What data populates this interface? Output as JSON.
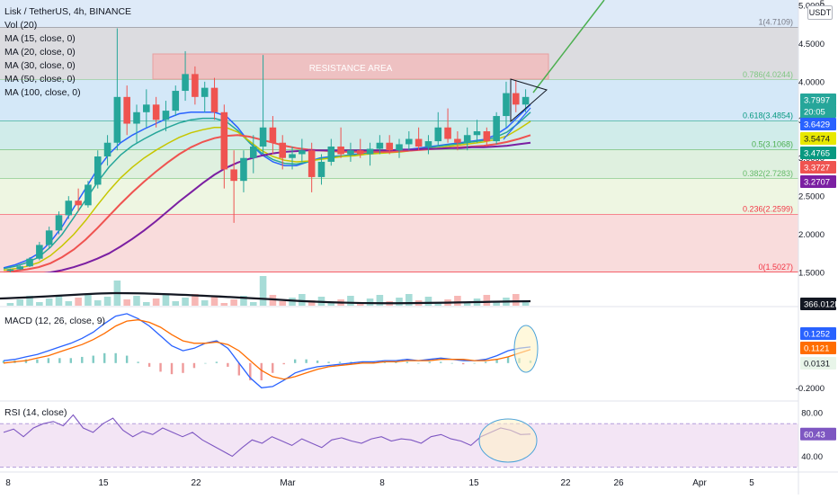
{
  "header": {
    "title": "Lisk / TetherUS, 4h, BINANCE",
    "indicators": [
      "Vol (20)",
      "MA (15, close, 0)",
      "MA (20, close, 0)",
      "MA (30, close, 0)",
      "MA (50, close, 0)",
      "MA (100, close, 0)"
    ]
  },
  "panes": {
    "macd_label": "MACD (12, 26, close, 9)",
    "rsi_label": "RSI (14, close)"
  },
  "currency_badge": "USDT",
  "annotations": {
    "resistance": "RESISTANCE AREA"
  },
  "colors": {
    "up": "#26a69a",
    "down": "#ef5350",
    "ma15": "#2962ff",
    "ma20": "#26a69a",
    "ma30": "#c6c600",
    "ma50": "#ef5350",
    "ma100": "#7b1fa2",
    "trend": "#4caf50",
    "rsi": "#7e57c2",
    "macd_signal": "#ff6d00"
  },
  "chart_data": [
    {
      "type": "candlestick",
      "name": "price",
      "x_ticks": [
        "8",
        "15",
        "22",
        "Mar",
        "8",
        "15",
        "22",
        "26",
        "Apr",
        "5"
      ],
      "y_ticks": [
        5.0,
        4.5,
        4.0,
        3.5,
        3.0,
        2.5,
        2.0,
        1.5
      ],
      "y_tick_labels": [
        "5.0000",
        "4.5000",
        "4.0000",
        "3.5000",
        "3.0000",
        "2.5000",
        "2.0000",
        "1.5000"
      ],
      "ylim": [
        1.35,
        5.0
      ],
      "candles_approx": [
        [
          1.52,
          1.55,
          1.5,
          1.54
        ],
        [
          1.54,
          1.6,
          1.53,
          1.58
        ],
        [
          1.58,
          1.7,
          1.57,
          1.68
        ],
        [
          1.68,
          1.9,
          1.66,
          1.86
        ],
        [
          1.86,
          2.1,
          1.82,
          2.05
        ],
        [
          2.05,
          2.3,
          2.0,
          2.25
        ],
        [
          2.25,
          2.5,
          2.2,
          2.44
        ],
        [
          2.44,
          2.6,
          2.3,
          2.38
        ],
        [
          2.38,
          2.7,
          2.35,
          2.65
        ],
        [
          2.65,
          3.1,
          2.6,
          3.02
        ],
        [
          3.02,
          3.3,
          2.9,
          3.2
        ],
        [
          3.2,
          4.7,
          3.1,
          3.8
        ],
        [
          3.8,
          3.95,
          3.3,
          3.45
        ],
        [
          3.45,
          3.7,
          3.2,
          3.6
        ],
        [
          3.6,
          3.9,
          3.4,
          3.7
        ],
        [
          3.7,
          3.8,
          3.4,
          3.5
        ],
        [
          3.5,
          3.75,
          3.35,
          3.62
        ],
        [
          3.62,
          3.95,
          3.55,
          3.88
        ],
        [
          3.88,
          4.4,
          3.75,
          4.1
        ],
        [
          4.1,
          4.2,
          3.7,
          3.8
        ],
        [
          3.8,
          4.0,
          3.6,
          3.92
        ],
        [
          3.92,
          4.05,
          3.5,
          3.6
        ],
        [
          3.6,
          3.7,
          2.6,
          2.85
        ],
        [
          2.85,
          3.1,
          2.15,
          2.7
        ],
        [
          2.7,
          3.1,
          2.55,
          3.0
        ],
        [
          3.0,
          3.3,
          2.8,
          3.15
        ],
        [
          3.15,
          4.35,
          3.05,
          3.4
        ],
        [
          3.4,
          3.55,
          3.05,
          3.2
        ],
        [
          3.2,
          3.3,
          2.85,
          3.0
        ],
        [
          3.0,
          3.15,
          2.85,
          3.05
        ],
        [
          3.05,
          3.25,
          2.95,
          3.1
        ],
        [
          3.1,
          3.2,
          2.55,
          2.75
        ],
        [
          2.75,
          3.05,
          2.65,
          2.95
        ],
        [
          2.95,
          3.25,
          2.9,
          3.15
        ],
        [
          3.15,
          3.4,
          3.0,
          3.05
        ],
        [
          3.05,
          3.2,
          2.95,
          3.1
        ],
        [
          3.1,
          3.25,
          3.0,
          3.05
        ],
        [
          3.05,
          3.2,
          2.9,
          3.12
        ],
        [
          3.12,
          3.3,
          3.05,
          3.2
        ],
        [
          3.2,
          3.3,
          3.05,
          3.1
        ],
        [
          3.1,
          3.25,
          3.0,
          3.18
        ],
        [
          3.18,
          3.35,
          3.1,
          3.25
        ],
        [
          3.25,
          3.4,
          3.1,
          3.15
        ],
        [
          3.15,
          3.3,
          3.05,
          3.22
        ],
        [
          3.22,
          3.6,
          3.15,
          3.4
        ],
        [
          3.4,
          3.65,
          3.2,
          3.25
        ],
        [
          3.25,
          3.35,
          3.1,
          3.2
        ],
        [
          3.2,
          3.4,
          3.1,
          3.3
        ],
        [
          3.3,
          3.5,
          3.2,
          3.35
        ],
        [
          3.35,
          3.4,
          3.15,
          3.22
        ],
        [
          3.22,
          3.6,
          3.18,
          3.55
        ],
        [
          3.55,
          4.0,
          3.4,
          3.85
        ],
        [
          3.85,
          4.02,
          3.6,
          3.7
        ],
        [
          3.7,
          3.9,
          3.6,
          3.8
        ]
      ],
      "moving_averages": [
        {
          "name": "MA (15, close, 0)",
          "values": [
            1.56,
            1.6,
            1.66,
            1.75,
            1.9,
            2.1,
            2.35,
            2.6,
            2.85,
            3.05,
            3.2,
            3.3,
            3.38,
            3.45,
            3.52,
            3.58,
            3.6,
            3.6,
            3.6,
            3.55,
            3.4,
            3.2,
            3.05,
            2.95,
            2.9,
            2.9,
            2.95,
            3.0,
            3.02,
            3.03,
            3.05,
            3.06,
            3.07,
            3.08,
            3.1,
            3.12,
            3.14,
            3.16,
            3.18,
            3.2,
            3.22,
            3.24,
            3.3,
            3.4,
            3.55,
            3.7
          ]
        },
        {
          "name": "MA (20, close, 0)",
          "values": [
            1.55,
            1.58,
            1.63,
            1.7,
            1.83,
            2.0,
            2.22,
            2.45,
            2.68,
            2.88,
            3.04,
            3.16,
            3.25,
            3.33,
            3.4,
            3.46,
            3.5,
            3.52,
            3.52,
            3.48,
            3.36,
            3.2,
            3.07,
            2.98,
            2.93,
            2.92,
            2.95,
            2.99,
            3.01,
            3.03,
            3.04,
            3.06,
            3.07,
            3.08,
            3.09,
            3.11,
            3.13,
            3.15,
            3.17,
            3.19,
            3.21,
            3.23,
            3.27,
            3.34,
            3.46,
            3.6
          ]
        },
        {
          "name": "MA (30, close, 0)",
          "values": [
            1.53,
            1.55,
            1.58,
            1.63,
            1.72,
            1.85,
            2.0,
            2.18,
            2.38,
            2.57,
            2.74,
            2.88,
            3.0,
            3.1,
            3.19,
            3.27,
            3.33,
            3.37,
            3.4,
            3.4,
            3.34,
            3.22,
            3.1,
            3.02,
            2.97,
            2.95,
            2.96,
            2.98,
            3.0,
            3.02,
            3.03,
            3.05,
            3.06,
            3.07,
            3.08,
            3.1,
            3.12,
            3.13,
            3.15,
            3.17,
            3.19,
            3.21,
            3.24,
            3.29,
            3.38,
            3.48
          ]
        },
        {
          "name": "MA (50, close, 0)",
          "values": [
            1.5,
            1.52,
            1.54,
            1.57,
            1.62,
            1.7,
            1.8,
            1.93,
            2.08,
            2.24,
            2.4,
            2.55,
            2.69,
            2.82,
            2.94,
            3.05,
            3.14,
            3.21,
            3.26,
            3.29,
            3.3,
            3.28,
            3.24,
            3.2,
            3.16,
            3.13,
            3.11,
            3.1,
            3.09,
            3.08,
            3.08,
            3.08,
            3.08,
            3.08,
            3.09,
            3.1,
            3.11,
            3.12,
            3.13,
            3.14,
            3.15,
            3.16,
            3.18,
            3.21,
            3.25,
            3.3
          ]
        },
        {
          "name": "MA (100, close, 0)",
          "values": [
            1.42,
            1.44,
            1.46,
            1.48,
            1.5,
            1.53,
            1.57,
            1.62,
            1.68,
            1.75,
            1.84,
            1.94,
            2.05,
            2.17,
            2.3,
            2.43,
            2.55,
            2.67,
            2.78,
            2.87,
            2.94,
            2.99,
            3.03,
            3.06,
            3.08,
            3.09,
            3.1,
            3.1,
            3.1,
            3.1,
            3.1,
            3.1,
            3.1,
            3.1,
            3.11,
            3.11,
            3.12,
            3.12,
            3.13,
            3.13,
            3.14,
            3.14,
            3.15,
            3.16,
            3.18,
            3.2
          ]
        }
      ],
      "fibonacci": [
        {
          "label": "1(4.7109)",
          "value": 4.7109,
          "color": "#787b86",
          "fill": "#ffffff"
        },
        {
          "label": "0.786(4.0244)",
          "value": 4.0244,
          "color": "#81c784",
          "fill": "#dcdce0"
        },
        {
          "label": "0.618(3.4854)",
          "value": 3.4854,
          "color": "#089981",
          "fill": "#d4e8f8"
        },
        {
          "label": "0.5(3.1068)",
          "value": 3.1068,
          "color": "#4caf50",
          "fill": "#d0ecea"
        },
        {
          "label": "0.382(2.7283)",
          "value": 2.7283,
          "color": "#66bb6a",
          "fill": "#dff0df"
        },
        {
          "label": "0.236(2.2599)",
          "value": 2.2599,
          "color": "#f23645",
          "fill": "#eef6e2"
        },
        {
          "label": "0(1.5027)",
          "value": 1.5027,
          "color": "#f23645",
          "fill": "#f9dcdc"
        }
      ],
      "price_labels": [
        {
          "text": "3.7997",
          "value": 3.7997,
          "color": "#26a69a"
        },
        {
          "text": "20:05",
          "value": 3.69,
          "color": "#26a69a"
        },
        {
          "text": "3.6429",
          "value": 3.6429,
          "color": "#2962ff"
        },
        {
          "text": "3.5474",
          "value": 3.5474,
          "color": "#e8e800"
        },
        {
          "text": "3.4765",
          "value": 3.4765,
          "color": "#089981"
        },
        {
          "text": "3.3727",
          "value": 3.3727,
          "color": "#ef5350"
        },
        {
          "text": "3.2707",
          "value": 3.2707,
          "color": "#7b1fa2"
        }
      ]
    },
    {
      "type": "bar",
      "name": "volume",
      "label": "366.012K",
      "volume_ma_level": 0.62
    },
    {
      "type": "line",
      "name": "MACD",
      "y_ticks": [
        -0.2
      ],
      "y_tick_labels": [
        "-0.2000"
      ],
      "ylim": [
        -0.3,
        0.45
      ],
      "macd_values": [
        0.02,
        0.03,
        0.05,
        0.07,
        0.1,
        0.13,
        0.16,
        0.2,
        0.25,
        0.32,
        0.38,
        0.4,
        0.36,
        0.3,
        0.22,
        0.14,
        0.1,
        0.12,
        0.16,
        0.18,
        0.12,
        0.0,
        -0.12,
        -0.2,
        -0.19,
        -0.14,
        -0.08,
        -0.05,
        -0.03,
        -0.02,
        -0.01,
        0.0,
        0.01,
        0.01,
        0.02,
        0.02,
        0.03,
        0.02,
        0.03,
        0.04,
        0.03,
        0.02,
        0.02,
        0.03,
        0.06,
        0.1,
        0.12,
        0.13
      ],
      "signal_values": [
        0.0,
        0.01,
        0.02,
        0.04,
        0.06,
        0.09,
        0.12,
        0.15,
        0.19,
        0.24,
        0.3,
        0.34,
        0.35,
        0.33,
        0.29,
        0.23,
        0.18,
        0.16,
        0.16,
        0.17,
        0.15,
        0.1,
        0.02,
        -0.06,
        -0.11,
        -0.13,
        -0.11,
        -0.08,
        -0.05,
        -0.03,
        -0.02,
        -0.01,
        0.0,
        0.0,
        0.01,
        0.01,
        0.02,
        0.02,
        0.02,
        0.03,
        0.03,
        0.03,
        0.02,
        0.02,
        0.03,
        0.05,
        0.08,
        0.11
      ],
      "price_labels": [
        {
          "text": "0.1252",
          "value": 0.1252,
          "color": "#2962ff"
        },
        {
          "text": "0.1121",
          "value": 0.1121,
          "color": "#ff6d00"
        },
        {
          "text": "0.0131",
          "value": 0.0131,
          "color": "#e8f5e9"
        }
      ]
    },
    {
      "type": "line",
      "name": "RSI",
      "y_ticks": [
        80,
        40
      ],
      "y_tick_labels": [
        "80.00",
        "40.00"
      ],
      "ylim": [
        28,
        90
      ],
      "band": [
        70,
        30
      ],
      "values": [
        62,
        65,
        58,
        66,
        70,
        72,
        68,
        78,
        66,
        62,
        70,
        75,
        64,
        58,
        63,
        60,
        66,
        62,
        58,
        62,
        55,
        50,
        45,
        40,
        48,
        55,
        52,
        58,
        54,
        50,
        56,
        52,
        48,
        55,
        57,
        54,
        52,
        56,
        58,
        54,
        56,
        55,
        52,
        58,
        60,
        56,
        54,
        50,
        58,
        62,
        66,
        64,
        60,
        60.43
      ],
      "price_labels": [
        {
          "text": "60.43",
          "value": 60.43,
          "color": "#7e57c2"
        }
      ]
    }
  ]
}
